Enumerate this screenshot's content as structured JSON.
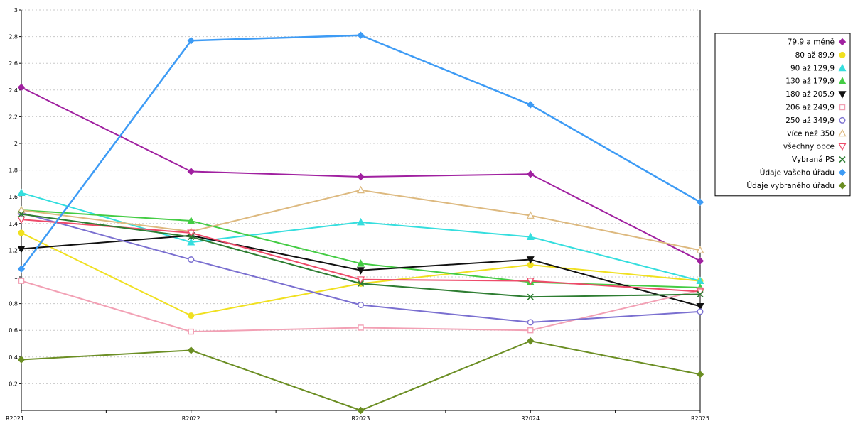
{
  "chart_data": {
    "type": "line",
    "title": "",
    "x": [
      "R2021",
      "R2022",
      "R2023",
      "R2024",
      "R2025"
    ],
    "ylim": [
      0,
      3
    ],
    "ytick_step": 0.2,
    "grid": true,
    "legend_position": "top-right",
    "axis_color": "#000000",
    "grid_color": "#c8c8c8",
    "series": [
      {
        "name": "79,9 a méně",
        "color": "#a020a0",
        "marker": "diamond",
        "filled": true,
        "width": 2,
        "values": [
          2.42,
          1.79,
          1.75,
          1.77,
          1.12
        ]
      },
      {
        "name": "80 až 89,9",
        "color": "#f0e020",
        "marker": "circle",
        "filled": true,
        "width": 2,
        "values": [
          1.33,
          0.71,
          0.95,
          1.09,
          0.97
        ]
      },
      {
        "name": "90 až 129,9",
        "color": "#35dede",
        "marker": "triangle-up",
        "filled": true,
        "width": 2,
        "values": [
          1.63,
          1.26,
          1.41,
          1.3,
          0.97
        ]
      },
      {
        "name": "130 až 179,9",
        "color": "#44cc44",
        "marker": "triangle-up",
        "filled": true,
        "width": 2,
        "values": [
          1.5,
          1.42,
          1.1,
          0.96,
          0.92
        ]
      },
      {
        "name": "180 až 205,9",
        "color": "#111111",
        "marker": "triangle-down",
        "filled": true,
        "width": 2,
        "values": [
          1.21,
          1.31,
          1.05,
          1.13,
          0.78
        ]
      },
      {
        "name": "206 až 249,9",
        "color": "#f2a0b4",
        "marker": "square",
        "filled": false,
        "width": 2,
        "values": [
          0.97,
          0.59,
          0.62,
          0.6,
          0.9
        ]
      },
      {
        "name": "250 až 349,9",
        "color": "#7a6fd0",
        "marker": "circle",
        "filled": false,
        "width": 2,
        "values": [
          1.48,
          1.13,
          0.79,
          0.66,
          0.74
        ]
      },
      {
        "name": "více než 350",
        "color": "#ddb97f",
        "marker": "triangle-up",
        "filled": false,
        "width": 2,
        "values": [
          1.5,
          1.34,
          1.65,
          1.46,
          1.2
        ]
      },
      {
        "name": "všechny obce",
        "color": "#ee4b6a",
        "marker": "triangle-down",
        "filled": false,
        "width": 2,
        "values": [
          1.43,
          1.33,
          0.98,
          0.97,
          0.89
        ]
      },
      {
        "name": "Vybraná PS",
        "color": "#2e7d32",
        "marker": "x",
        "filled": false,
        "width": 2,
        "values": [
          1.47,
          1.3,
          0.95,
          0.85,
          0.87
        ]
      },
      {
        "name": "Údaje vašeho úřadu",
        "color": "#3d9bf5",
        "marker": "diamond",
        "filled": true,
        "width": 2.5,
        "values": [
          1.06,
          2.77,
          2.81,
          2.29,
          1.56
        ]
      },
      {
        "name": "Údaje vybraného úřadu",
        "color": "#6b8e23",
        "marker": "diamond",
        "filled": true,
        "width": 2,
        "values": [
          0.38,
          0.45,
          0.0,
          0.52,
          0.27
        ]
      }
    ]
  }
}
